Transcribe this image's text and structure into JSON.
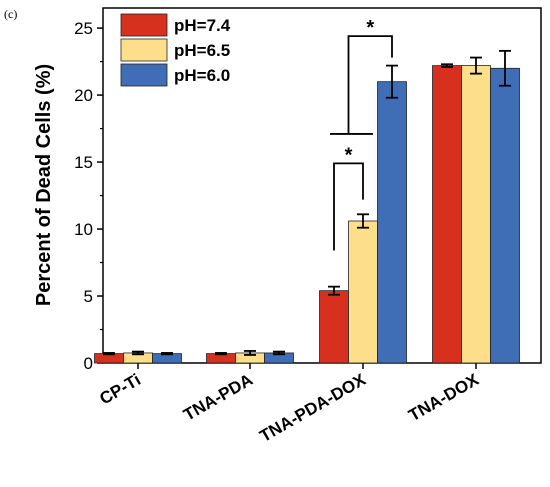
{
  "panel_label": "(c)",
  "chart_data": {
    "type": "bar",
    "ylabel": "Percent of Dead Cells (%)",
    "xlabel": "",
    "ylim": [
      0,
      26.5
    ],
    "yticks": [
      0,
      5,
      10,
      15,
      20,
      25
    ],
    "categories": [
      "CP-Ti",
      "TNA-PDA",
      "TNA-PDA-DOX",
      "TNA-DOX"
    ],
    "series": [
      {
        "name": "pH=7.4",
        "color": "#d7301f",
        "values": [
          0.7,
          0.7,
          5.4,
          22.2
        ],
        "errors": [
          0.05,
          0.05,
          0.3,
          0.1
        ]
      },
      {
        "name": "pH=6.5",
        "color": "#fddf8b",
        "values": [
          0.75,
          0.75,
          10.6,
          22.2
        ],
        "errors": [
          0.1,
          0.15,
          0.5,
          0.6
        ]
      },
      {
        "name": "pH=6.0",
        "color": "#3f6db6",
        "values": [
          0.7,
          0.75,
          21.0,
          22.0
        ],
        "errors": [
          0.05,
          0.1,
          1.2,
          1.3
        ]
      }
    ],
    "legend_position": "top-left",
    "annotations": [
      {
        "text": "*",
        "type": "significance",
        "category": "TNA-PDA-DOX",
        "between": [
          "pH=7.4",
          "pH=6.5"
        ]
      },
      {
        "text": "*",
        "type": "significance",
        "category": "TNA-PDA-DOX",
        "between": [
          "pH=7.4 & pH=6.5",
          "pH=6.0"
        ]
      }
    ]
  }
}
